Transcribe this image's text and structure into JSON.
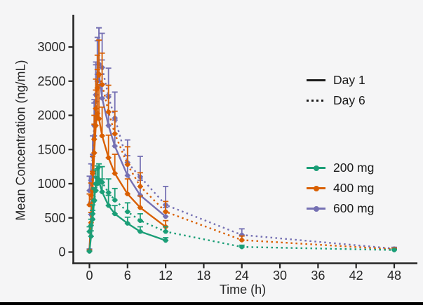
{
  "figure": {
    "background": "#f5f5f6",
    "text_color": "#262626",
    "bottom_border_color": "#000000"
  },
  "chart_data": {
    "type": "line",
    "title": "",
    "xlabel": "Time (h)",
    "ylabel": "Mean Concentration (ng/mL)",
    "xlim": [
      0,
      48
    ],
    "ylim": [
      0,
      3000
    ],
    "x_ticks": [
      0,
      6,
      12,
      18,
      24,
      30,
      36,
      42,
      48
    ],
    "y_ticks": [
      0,
      500,
      1000,
      1500,
      2000,
      2500,
      3000
    ],
    "grid": false,
    "axis_color": "#262626",
    "error_bars": "upper, with caps",
    "legend_position": "right",
    "day_legend": [
      {
        "label": "Day 1",
        "style": "solid"
      },
      {
        "label": "Day 6",
        "style": "dashed"
      }
    ],
    "dose_legend": [
      {
        "label": "200 mg",
        "color": "#1B9E77"
      },
      {
        "label": "400 mg",
        "color": "#D95F02"
      },
      {
        "label": "600 mg",
        "color": "#7570B3"
      }
    ],
    "series": [
      {
        "name": "200 mg Day 1",
        "dose": "200 mg",
        "day": "Day 1",
        "color": "#1B9E77",
        "dashed": false,
        "x": [
          0,
          0.25,
          0.5,
          0.75,
          1,
          1.25,
          1.5,
          2,
          3,
          4,
          6,
          8,
          12
        ],
        "y": [
          10,
          230,
          480,
          760,
          1000,
          1080,
          1030,
          880,
          680,
          560,
          420,
          300,
          170
        ],
        "err": [
          5,
          80,
          130,
          180,
          200,
          180,
          210,
          190,
          150,
          120,
          90,
          70,
          40
        ]
      },
      {
        "name": "200 mg Day 6",
        "dose": "200 mg",
        "day": "Day 6",
        "color": "#1B9E77",
        "dashed": true,
        "x": [
          0,
          0.25,
          0.5,
          0.75,
          1,
          1.25,
          1.5,
          2,
          3,
          4,
          6,
          8,
          12,
          24,
          48
        ],
        "y": [
          300,
          390,
          560,
          750,
          900,
          1000,
          1050,
          1020,
          870,
          760,
          590,
          460,
          300,
          75,
          30
        ],
        "err": [
          70,
          90,
          130,
          170,
          200,
          220,
          240,
          230,
          200,
          170,
          130,
          100,
          70,
          25,
          10
        ]
      },
      {
        "name": "400 mg Day 1",
        "dose": "400 mg",
        "day": "Day 1",
        "color": "#D95F02",
        "dashed": false,
        "x": [
          0,
          0.25,
          0.5,
          0.75,
          1,
          1.25,
          1.5,
          2,
          3,
          4,
          6,
          8,
          12
        ],
        "y": [
          20,
          430,
          900,
          1450,
          1850,
          2030,
          1950,
          1700,
          1380,
          1150,
          850,
          650,
          370
        ],
        "err": [
          10,
          150,
          280,
          420,
          520,
          640,
          500,
          420,
          330,
          280,
          220,
          170,
          90
        ]
      },
      {
        "name": "400 mg Day 6",
        "dose": "400 mg",
        "day": "Day 6",
        "color": "#D95F02",
        "dashed": true,
        "x": [
          0,
          0.25,
          0.5,
          0.75,
          1,
          1.25,
          1.5,
          2,
          3,
          4,
          6,
          8,
          12,
          24,
          48
        ],
        "y": [
          690,
          830,
          1150,
          1650,
          2100,
          2400,
          2600,
          2450,
          2050,
          1730,
          1280,
          960,
          590,
          175,
          40
        ],
        "err": [
          160,
          180,
          250,
          350,
          430,
          480,
          500,
          460,
          390,
          330,
          260,
          200,
          150,
          60,
          15
        ]
      },
      {
        "name": "600 mg Day 1",
        "dose": "600 mg",
        "day": "Day 1",
        "color": "#7570B3",
        "dashed": false,
        "x": [
          0,
          0.25,
          0.5,
          0.75,
          1,
          1.25,
          1.5,
          2,
          3,
          4,
          6,
          8,
          12
        ],
        "y": [
          30,
          550,
          1100,
          1700,
          2200,
          2500,
          2600,
          2250,
          1850,
          1550,
          1120,
          830,
          520
        ],
        "err": [
          15,
          180,
          330,
          480,
          580,
          640,
          680,
          560,
          450,
          380,
          290,
          220,
          130
        ]
      },
      {
        "name": "600 mg Day 6",
        "dose": "600 mg",
        "day": "Day 6",
        "color": "#7570B3",
        "dashed": true,
        "x": [
          0,
          0.25,
          0.5,
          0.75,
          1,
          1.25,
          1.5,
          2,
          3,
          4,
          6,
          8,
          12,
          24,
          48
        ],
        "y": [
          900,
          1050,
          1400,
          1850,
          2300,
          2600,
          2750,
          2700,
          2270,
          1960,
          1310,
          1100,
          690,
          250,
          50
        ],
        "err": [
          210,
          240,
          300,
          380,
          440,
          490,
          530,
          500,
          420,
          380,
          330,
          300,
          270,
          90,
          20
        ]
      }
    ]
  }
}
